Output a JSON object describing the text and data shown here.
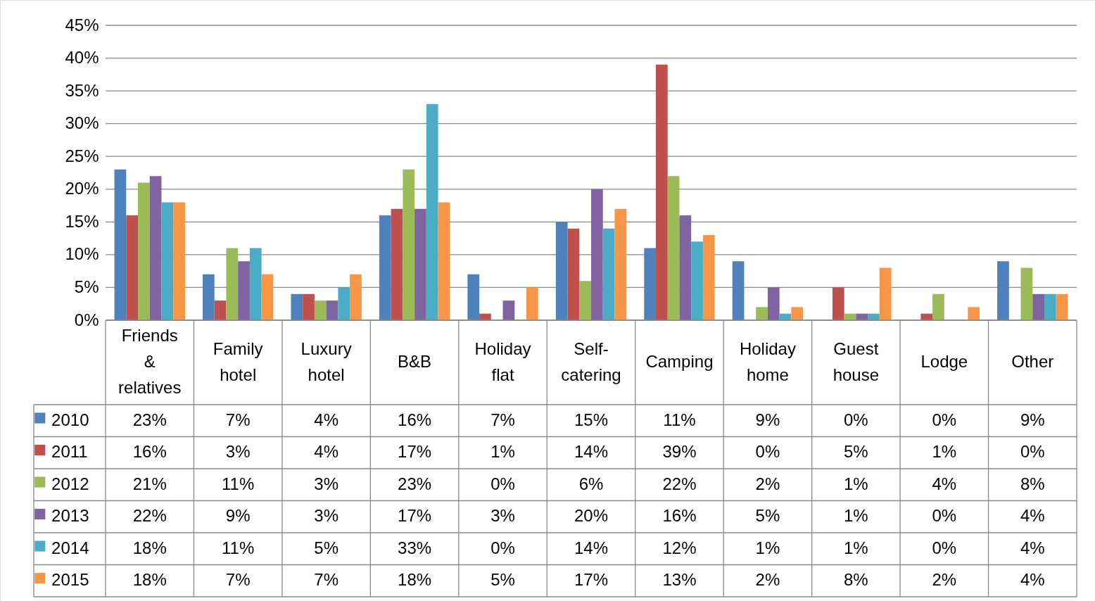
{
  "chart_data": {
    "type": "bar",
    "categories": [
      "Friends & relatives",
      "Family hotel",
      "Luxury hotel",
      "B&B",
      "Holiday flat",
      "Self-catering",
      "Camping",
      "Holiday home",
      "Guest house",
      "Lodge",
      "Other"
    ],
    "series": [
      {
        "name": "2010",
        "color": "#4f81bd",
        "values": [
          23,
          7,
          4,
          16,
          7,
          15,
          11,
          9,
          0,
          0,
          9
        ],
        "value_labels": [
          "23%",
          "7%",
          "4%",
          "16%",
          "7%",
          "15%",
          "11%",
          "9%",
          "0%",
          "0%",
          "9%"
        ]
      },
      {
        "name": "2011",
        "color": "#c0504d",
        "values": [
          16,
          3,
          4,
          17,
          1,
          14,
          39,
          0,
          5,
          1,
          0
        ],
        "value_labels": [
          "16%",
          "3%",
          "4%",
          "17%",
          "1%",
          "14%",
          "39%",
          "0%",
          "5%",
          "1%",
          "0%"
        ]
      },
      {
        "name": "2012",
        "color": "#9bbb59",
        "values": [
          21,
          11,
          3,
          23,
          0,
          6,
          22,
          2,
          1,
          4,
          8
        ],
        "value_labels": [
          "21%",
          "11%",
          "3%",
          "23%",
          "0%",
          "6%",
          "22%",
          "2%",
          "1%",
          "4%",
          "8%"
        ]
      },
      {
        "name": "2013",
        "color": "#8064a2",
        "values": [
          22,
          9,
          3,
          17,
          3,
          20,
          16,
          5,
          1,
          0,
          4
        ],
        "value_labels": [
          "22%",
          "9%",
          "3%",
          "17%",
          "3%",
          "20%",
          "16%",
          "5%",
          "1%",
          "0%",
          "4%"
        ]
      },
      {
        "name": "2014",
        "color": "#4bacc6",
        "values": [
          18,
          11,
          5,
          33,
          0,
          14,
          12,
          1,
          1,
          0,
          4
        ],
        "value_labels": [
          "18%",
          "11%",
          "5%",
          "33%",
          "0%",
          "14%",
          "12%",
          "1%",
          "1%",
          "0%",
          "4%"
        ]
      },
      {
        "name": "2015",
        "color": "#f79646",
        "values": [
          18,
          7,
          7,
          18,
          5,
          17,
          13,
          2,
          8,
          2,
          4
        ],
        "value_labels": [
          "18%",
          "7%",
          "7%",
          "18%",
          "5%",
          "17%",
          "13%",
          "2%",
          "8%",
          "2%",
          "4%"
        ]
      }
    ],
    "ylim": [
      0,
      45
    ],
    "yticks": [
      {
        "value": 0,
        "label": "0%"
      },
      {
        "value": 5,
        "label": "5%"
      },
      {
        "value": 10,
        "label": "10%"
      },
      {
        "value": 15,
        "label": "15%"
      },
      {
        "value": 20,
        "label": "20%"
      },
      {
        "value": 25,
        "label": "25%"
      },
      {
        "value": 30,
        "label": "30%"
      },
      {
        "value": 35,
        "label": "35%"
      },
      {
        "value": 40,
        "label": "40%"
      },
      {
        "value": 45,
        "label": "45%"
      }
    ],
    "grid": "y",
    "legend": "bottom left"
  }
}
